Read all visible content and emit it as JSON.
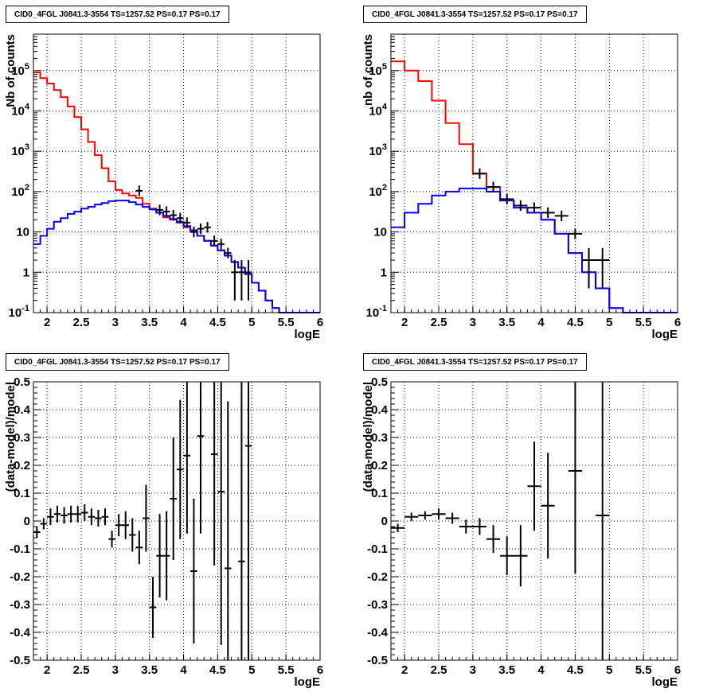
{
  "chart_data": [
    {
      "type": "line",
      "title": "CID0_4FGL J0841.3-3554 TS=1257.52 PS=0.17 PS=0.17",
      "xlabel": "logE",
      "ylabel": "Nb of counts",
      "xlim": [
        1.8,
        6.0
      ],
      "ylim": [
        0.1,
        800000
      ],
      "yscale": "log",
      "grid": true,
      "xticks": [
        "2",
        "2.5",
        "3",
        "3.5",
        "4",
        "4.5",
        "5",
        "5.5",
        "6"
      ],
      "yticks": [
        "10^-1",
        "1",
        "10",
        "10^2",
        "10^3",
        "10^4",
        "10^5"
      ],
      "bin_edges": [
        1.8,
        1.9,
        2.0,
        2.1,
        2.2,
        2.3,
        2.4,
        2.5,
        2.6,
        2.7,
        2.8,
        2.9,
        3.0,
        3.1,
        3.2,
        3.3,
        3.4,
        3.5,
        3.6,
        3.7,
        3.8,
        3.9,
        4.0,
        4.1,
        4.2,
        4.3,
        4.4,
        4.5,
        4.6,
        4.7,
        4.8,
        4.9,
        5.0,
        5.1,
        5.2,
        5.3,
        5.4,
        5.5,
        5.6,
        5.7,
        5.8,
        5.9,
        6.0
      ],
      "series": [
        {
          "color": "#ff0000",
          "values": [
            90000,
            65000,
            48000,
            33000,
            22000,
            13000,
            7000,
            3500,
            1700,
            800,
            380,
            180,
            110,
            90,
            80,
            70,
            50,
            38,
            30,
            23,
            20,
            17,
            13,
            10,
            8,
            6,
            4.6,
            3.5,
            2.6,
            1.8,
            1.3,
            0.9,
            0.55,
            0.35,
            0.2,
            0.13,
            0.1,
            0.1,
            0.1,
            0.1,
            0.1,
            0.1
          ]
        },
        {
          "color": "#0000ff",
          "values": [
            5,
            8,
            12,
            18,
            22,
            28,
            32,
            38,
            42,
            48,
            52,
            58,
            60,
            60,
            55,
            48,
            42,
            36,
            30,
            25,
            21,
            18,
            14,
            11,
            8,
            6,
            4.6,
            3.5,
            2.6,
            1.8,
            1.3,
            0.9,
            0.55,
            0.35,
            0.2,
            0.13,
            0.1,
            0.1,
            0.1,
            0.1,
            0.1,
            0.1
          ]
        },
        {
          "color": "#000000",
          "style": "points",
          "points": [
            {
              "x": 3.35,
              "y": 105
            },
            {
              "x": 3.65,
              "y": 35
            },
            {
              "x": 3.75,
              "y": 32
            },
            {
              "x": 3.85,
              "y": 26
            },
            {
              "x": 3.95,
              "y": 22
            },
            {
              "x": 4.05,
              "y": 17
            },
            {
              "x": 4.15,
              "y": 10
            },
            {
              "x": 4.25,
              "y": 12
            },
            {
              "x": 4.35,
              "y": 13
            },
            {
              "x": 4.45,
              "y": 6
            },
            {
              "x": 4.55,
              "y": 5
            },
            {
              "x": 4.65,
              "y": 3
            },
            {
              "x": 4.75,
              "y": 1
            },
            {
              "x": 4.85,
              "y": 1
            },
            {
              "x": 4.95,
              "y": 1
            }
          ]
        }
      ]
    },
    {
      "type": "line",
      "title": "CID0_4FGL J0841.3-3554 TS=1257.52 PS=0.17 PS=0.17",
      "xlabel": "logE",
      "ylabel": "nb of counts",
      "xlim": [
        1.8,
        6.0
      ],
      "ylim": [
        0.1,
        800000
      ],
      "yscale": "log",
      "grid": true,
      "xticks": [
        "2",
        "2.5",
        "3",
        "3.5",
        "4",
        "4.5",
        "5",
        "5.5",
        "6"
      ],
      "yticks": [
        "10^-1",
        "1",
        "10",
        "10^2",
        "10^3",
        "10^4",
        "10^5"
      ],
      "bin_edges": [
        1.8,
        2.0,
        2.2,
        2.4,
        2.6,
        2.8,
        3.0,
        3.2,
        3.4,
        3.6,
        3.8,
        4.0,
        4.2,
        4.4,
        4.6,
        4.8,
        5.0,
        5.2,
        5.4,
        5.6,
        5.8,
        6.0
      ],
      "series": [
        {
          "color": "#ff0000",
          "values": [
            170000,
            100000,
            55000,
            18000,
            5000,
            1500,
            280,
            130,
            60,
            40,
            30,
            20,
            9,
            3,
            1,
            0.4,
            0.13,
            0.1,
            0.1,
            0.1,
            0.1
          ]
        },
        {
          "color": "#0000ff",
          "values": [
            13,
            30,
            50,
            80,
            100,
            120,
            120,
            100,
            60,
            40,
            30,
            20,
            9,
            3,
            1,
            0.4,
            0.13,
            0.1,
            0.1,
            0.1,
            0.1
          ]
        },
        {
          "color": "#000000",
          "style": "points",
          "points": [
            {
              "x": 3.1,
              "y": 280
            },
            {
              "x": 3.3,
              "y": 130
            },
            {
              "x": 3.5,
              "y": 65
            },
            {
              "x": 3.7,
              "y": 45
            },
            {
              "x": 3.9,
              "y": 40
            },
            {
              "x": 4.1,
              "y": 30
            },
            {
              "x": 4.3,
              "y": 25
            },
            {
              "x": 4.5,
              "y": 9
            },
            {
              "x": 4.7,
              "y": 2
            },
            {
              "x": 4.9,
              "y": 2
            }
          ]
        }
      ]
    },
    {
      "type": "scatter",
      "title": "CID0_4FGL J0841.3-3554 TS=1257.52 PS=0.17 PS=0.17",
      "xlabel": "logE",
      "ylabel": "(data-model)/model",
      "xlim": [
        1.8,
        6.0
      ],
      "ylim": [
        -0.5,
        0.5
      ],
      "grid": true,
      "xticks": [
        "2",
        "2.5",
        "3",
        "3.5",
        "4",
        "4.5",
        "5",
        "5.5",
        "6"
      ],
      "yticks": [
        "-0.5",
        "-0.4",
        "-0.3",
        "-0.2",
        "-0.1",
        "0",
        "0.1",
        "0.2",
        "0.3",
        "0.4",
        "0.5"
      ],
      "points": [
        {
          "x": 1.85,
          "y": -0.04,
          "xerr": 0.05,
          "yerr": 0.02
        },
        {
          "x": 1.95,
          "y": -0.01,
          "xerr": 0.05,
          "yerr": 0.02
        },
        {
          "x": 2.05,
          "y": 0.015,
          "xerr": 0.05,
          "yerr": 0.03
        },
        {
          "x": 2.15,
          "y": 0.025,
          "xerr": 0.05,
          "yerr": 0.03
        },
        {
          "x": 2.25,
          "y": 0.02,
          "xerr": 0.05,
          "yerr": 0.03
        },
        {
          "x": 2.35,
          "y": 0.025,
          "xerr": 0.05,
          "yerr": 0.03
        },
        {
          "x": 2.45,
          "y": 0.025,
          "xerr": 0.05,
          "yerr": 0.03
        },
        {
          "x": 2.55,
          "y": 0.03,
          "xerr": 0.05,
          "yerr": 0.03
        },
        {
          "x": 2.65,
          "y": 0.015,
          "xerr": 0.05,
          "yerr": 0.03
        },
        {
          "x": 2.75,
          "y": 0.01,
          "xerr": 0.05,
          "yerr": 0.03
        },
        {
          "x": 2.85,
          "y": 0.015,
          "xerr": 0.05,
          "yerr": 0.03
        },
        {
          "x": 2.95,
          "y": -0.065,
          "xerr": 0.05,
          "yerr": 0.03
        },
        {
          "x": 3.05,
          "y": -0.015,
          "xerr": 0.05,
          "yerr": 0.04
        },
        {
          "x": 3.15,
          "y": -0.015,
          "xerr": 0.05,
          "yerr": 0.05
        },
        {
          "x": 3.25,
          "y": -0.05,
          "xerr": 0.05,
          "yerr": 0.06
        },
        {
          "x": 3.35,
          "y": -0.095,
          "xerr": 0.05,
          "yerr": 0.06
        },
        {
          "x": 3.45,
          "y": 0.01,
          "xerr": 0.05,
          "yerr": 0.12
        },
        {
          "x": 3.55,
          "y": -0.31,
          "xerr": 0.05,
          "yerr": 0.11
        },
        {
          "x": 3.65,
          "y": -0.125,
          "xerr": 0.05,
          "yerr": 0.15
        },
        {
          "x": 3.75,
          "y": -0.125,
          "xerr": 0.05,
          "yerr": 0.16
        },
        {
          "x": 3.85,
          "y": 0.08,
          "xerr": 0.05,
          "yerr": 0.22
        },
        {
          "x": 3.95,
          "y": 0.185,
          "xerr": 0.05,
          "yerr": 0.25
        },
        {
          "x": 4.05,
          "y": 0.235,
          "xerr": 0.05,
          "yerr": 0.28
        },
        {
          "x": 4.15,
          "y": -0.18,
          "xerr": 0.05,
          "yerr": 0.26
        },
        {
          "x": 4.25,
          "y": 0.305,
          "xerr": 0.05,
          "yerr": 0.35
        },
        {
          "x": 4.45,
          "y": 0.24,
          "xerr": 0.05,
          "yerr": 0.4
        },
        {
          "x": 4.55,
          "y": 0.105,
          "xerr": 0.05,
          "yerr": 0.55
        },
        {
          "x": 4.65,
          "y": -0.17,
          "xerr": 0.05,
          "yerr": 0.6
        },
        {
          "x": 4.85,
          "y": -0.145,
          "xerr": 0.05,
          "yerr": 0.7
        },
        {
          "x": 4.95,
          "y": 0.27,
          "xerr": 0.05,
          "yerr": 0.9
        }
      ]
    },
    {
      "type": "scatter",
      "title": "CID0_4FGL J0841.3-3554 TS=1257.52 PS=0.17 PS=0.17",
      "xlabel": "logE",
      "ylabel": "(data-model)/model",
      "xlim": [
        1.8,
        6.0
      ],
      "ylim": [
        -0.5,
        0.5
      ],
      "grid": true,
      "xticks": [
        "2",
        "2.5",
        "3",
        "3.5",
        "4",
        "4.5",
        "5",
        "5.5",
        "6"
      ],
      "yticks": [
        "-0.5",
        "-0.4",
        "-0.3",
        "-0.2",
        "-0.1",
        "0",
        "0.1",
        "0.2",
        "0.3",
        "0.4",
        "0.5"
      ],
      "points": [
        {
          "x": 1.9,
          "y": -0.025,
          "xerr": 0.1,
          "yerr": 0.015
        },
        {
          "x": 2.1,
          "y": 0.015,
          "xerr": 0.1,
          "yerr": 0.015
        },
        {
          "x": 2.3,
          "y": 0.02,
          "xerr": 0.1,
          "yerr": 0.015
        },
        {
          "x": 2.5,
          "y": 0.025,
          "xerr": 0.1,
          "yerr": 0.02
        },
        {
          "x": 2.7,
          "y": 0.01,
          "xerr": 0.1,
          "yerr": 0.02
        },
        {
          "x": 2.9,
          "y": -0.02,
          "xerr": 0.1,
          "yerr": 0.025
        },
        {
          "x": 3.1,
          "y": -0.02,
          "xerr": 0.1,
          "yerr": 0.03
        },
        {
          "x": 3.3,
          "y": -0.065,
          "xerr": 0.1,
          "yerr": 0.05
        },
        {
          "x": 3.5,
          "y": -0.125,
          "xerr": 0.1,
          "yerr": 0.07
        },
        {
          "x": 3.7,
          "y": -0.125,
          "xerr": 0.1,
          "yerr": 0.11
        },
        {
          "x": 3.9,
          "y": 0.125,
          "xerr": 0.1,
          "yerr": 0.16
        },
        {
          "x": 4.1,
          "y": 0.055,
          "xerr": 0.1,
          "yerr": 0.19
        },
        {
          "x": 4.5,
          "y": 0.18,
          "xerr": 0.1,
          "yerr": 0.37
        },
        {
          "x": 4.9,
          "y": 0.02,
          "xerr": 0.1,
          "yerr": 0.8
        }
      ]
    }
  ]
}
